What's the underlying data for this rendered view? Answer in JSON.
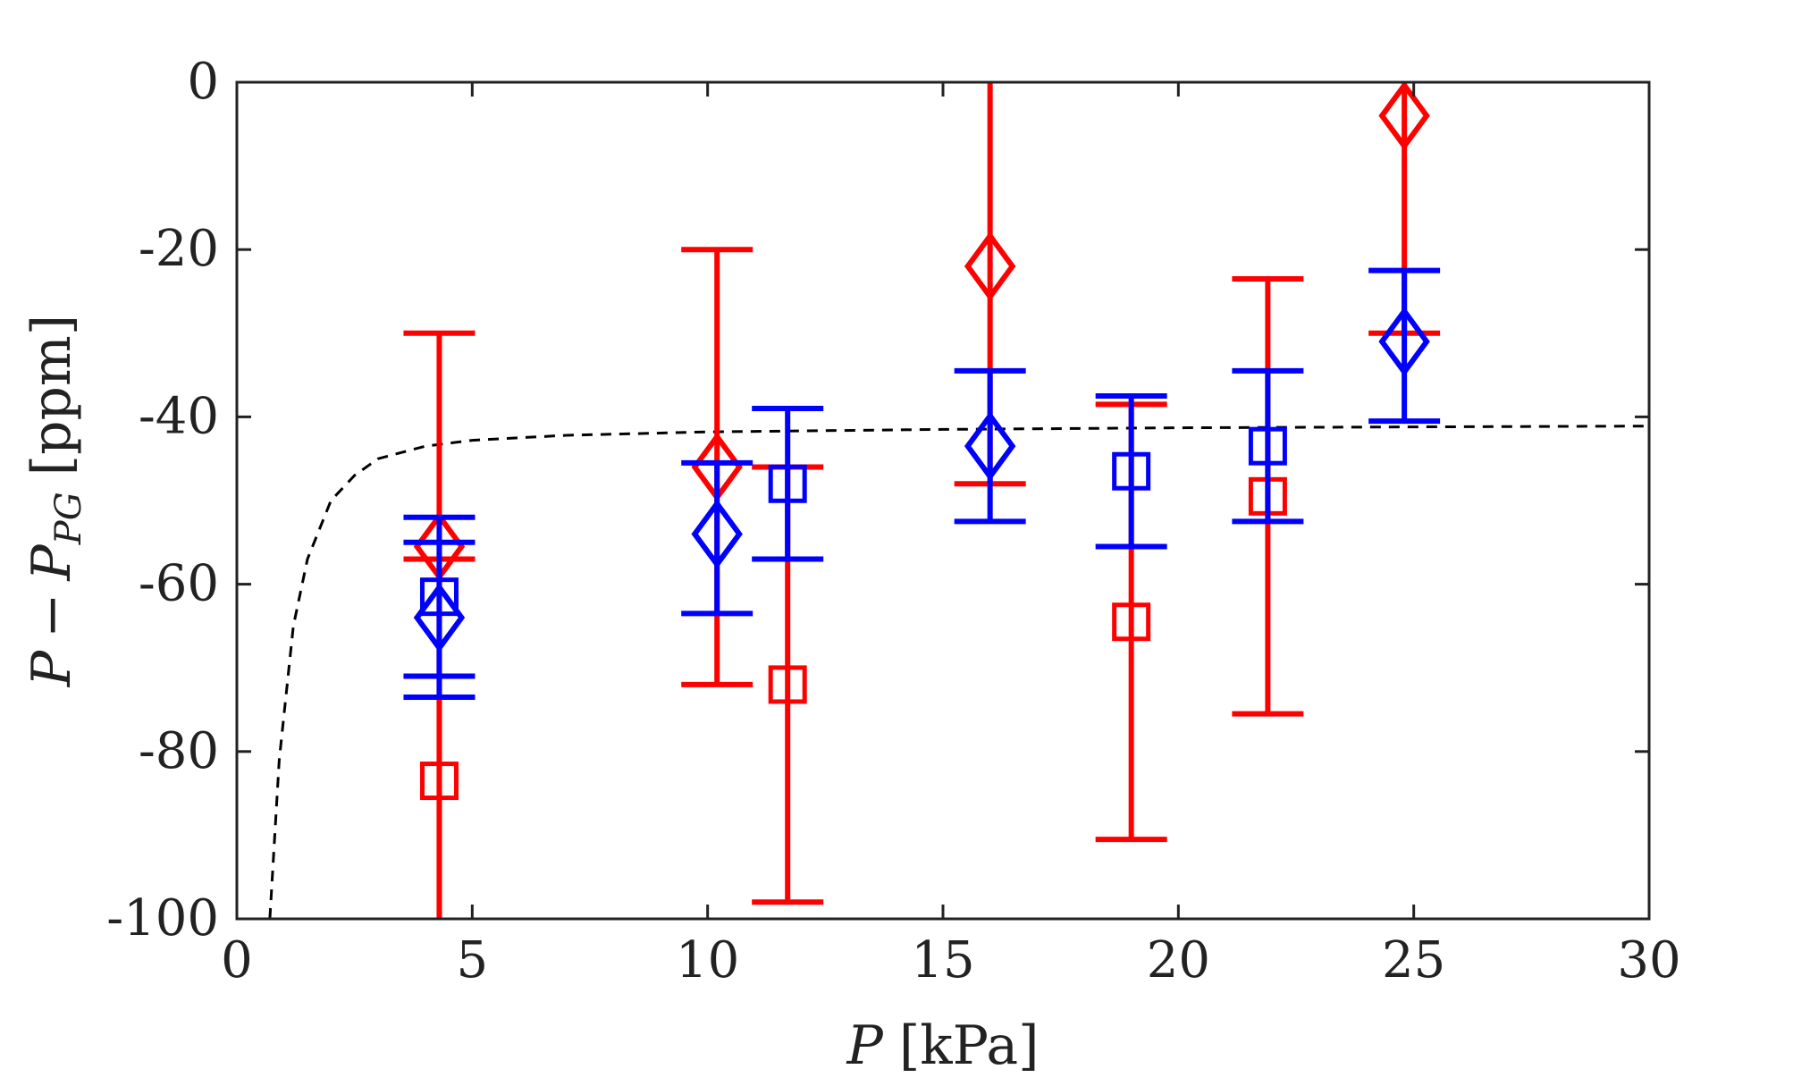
{
  "chart_data": {
    "type": "scatter",
    "title": "",
    "xlabel": {
      "var": "P",
      "unit": "[kPa]"
    },
    "ylabel": {
      "var": "P",
      "minus": "−",
      "sub_var": "P",
      "sub": "PG",
      "unit": "[ppm]"
    },
    "xlim": [
      0,
      30
    ],
    "ylim": [
      -100,
      0
    ],
    "xticks": [
      0,
      5,
      10,
      15,
      20,
      25,
      30
    ],
    "yticks": [
      0,
      -20,
      -40,
      -60,
      -80,
      -100
    ],
    "colors": {
      "red": "#ff0000",
      "blue": "#0000ff",
      "axis": "#222222",
      "fit": "#000000"
    },
    "fit_curve": {
      "style": "dashed",
      "asymptote": -41,
      "points": [
        [
          0.7,
          -100
        ],
        [
          0.9,
          -81
        ],
        [
          1.2,
          -65
        ],
        [
          1.5,
          -57
        ],
        [
          2,
          -50
        ],
        [
          2.5,
          -47
        ],
        [
          3,
          -45
        ],
        [
          4,
          -43.5
        ],
        [
          5,
          -42.8
        ],
        [
          7,
          -42.2
        ],
        [
          10,
          -41.8
        ],
        [
          15,
          -41.5
        ],
        [
          20,
          -41.3
        ],
        [
          25,
          -41.2
        ],
        [
          30,
          -41.1
        ]
      ]
    },
    "series": [
      {
        "name": "red-diamond",
        "marker": "diamond",
        "color": "#ff0000",
        "points": [
          {
            "x": 4.3,
            "y": -55.5,
            "lo": -100,
            "hi": -30
          },
          {
            "x": 10.2,
            "y": -46,
            "lo": -72,
            "hi": -20
          },
          {
            "x": 16.0,
            "y": -22,
            "lo": -48,
            "hi": 0
          },
          {
            "x": 24.8,
            "y": -4,
            "lo": -30,
            "hi": 0
          }
        ]
      },
      {
        "name": "red-square",
        "marker": "square",
        "color": "#ff0000",
        "points": [
          {
            "x": 4.3,
            "y": -83.5,
            "lo": -100,
            "hi": -57
          },
          {
            "x": 11.7,
            "y": -72,
            "lo": -98,
            "hi": -46
          },
          {
            "x": 19.0,
            "y": -64.5,
            "lo": -90.5,
            "hi": -38.5
          },
          {
            "x": 21.9,
            "y": -49.5,
            "lo": -75.5,
            "hi": -23.5
          }
        ]
      },
      {
        "name": "blue-diamond",
        "marker": "diamond",
        "color": "#0000ff",
        "points": [
          {
            "x": 4.3,
            "y": -64,
            "lo": -73.5,
            "hi": -55
          },
          {
            "x": 10.2,
            "y": -54,
            "lo": -63.5,
            "hi": -45.5
          },
          {
            "x": 16.0,
            "y": -43.5,
            "lo": -52.5,
            "hi": -34.5
          },
          {
            "x": 24.8,
            "y": -31,
            "lo": -40.5,
            "hi": -22.5
          }
        ]
      },
      {
        "name": "blue-square",
        "marker": "square",
        "color": "#0000ff",
        "points": [
          {
            "x": 4.3,
            "y": -61.5,
            "lo": -71,
            "hi": -52
          },
          {
            "x": 11.7,
            "y": -48,
            "lo": -57,
            "hi": -39
          },
          {
            "x": 19.0,
            "y": -46.5,
            "lo": -55.5,
            "hi": -37.5
          },
          {
            "x": 21.9,
            "y": -43.5,
            "lo": -52.5,
            "hi": -34.5
          }
        ]
      }
    ]
  }
}
